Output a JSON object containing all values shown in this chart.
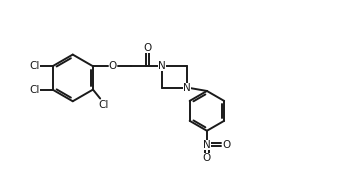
{
  "bg_color": "#ffffff",
  "line_color": "#1a1a1a",
  "line_width": 1.4,
  "font_size": 7.5,
  "fig_width": 3.48,
  "fig_height": 1.73,
  "dpi": 100,
  "xlim": [
    0,
    10
  ],
  "ylim": [
    0,
    5
  ]
}
